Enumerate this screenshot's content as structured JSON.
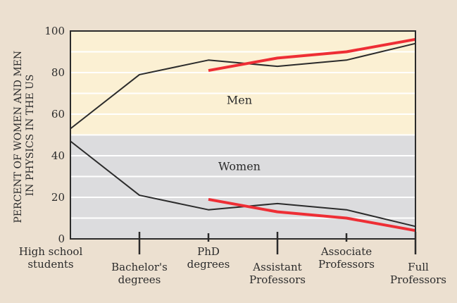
{
  "chart_data": {
    "type": "line",
    "title": "",
    "xlabel": "",
    "ylabel": "PERCENT OF WOMEN AND MEN IN PHYSICS IN THE US",
    "ylabel_lines": [
      "PERCENT OF WOMEN AND MEN",
      "IN PHYSICS IN THE US"
    ],
    "ylim": [
      0,
      100
    ],
    "yticks": [
      0,
      20,
      40,
      60,
      80,
      100
    ],
    "grid": true,
    "categories": [
      [
        "High school",
        "students"
      ],
      [
        "Bachelor's",
        "degrees"
      ],
      [
        "PhD",
        "degrees"
      ],
      [
        "Assistant",
        "Professors"
      ],
      [
        "Associate",
        "Professors"
      ],
      [
        "Full",
        "Professors"
      ]
    ],
    "region_labels": {
      "men": "Men",
      "women": "Women"
    },
    "series": [
      {
        "name": "Men (series A)",
        "color": "#2b2b2b",
        "values": [
          53,
          79,
          86,
          83,
          86,
          94
        ]
      },
      {
        "name": "Women (series A)",
        "color": "#2b2b2b",
        "values": [
          47,
          21,
          14,
          17,
          14,
          6
        ]
      },
      {
        "name": "Men (series B)",
        "color": "#ee2e35",
        "values": [
          null,
          null,
          81,
          87,
          90,
          96
        ]
      },
      {
        "name": "Women (series B)",
        "color": "#ee2e35",
        "values": [
          null,
          null,
          19,
          13,
          10,
          4
        ]
      }
    ],
    "colors": {
      "men_band": "#fbf0d3",
      "women_band": "#dcdcde",
      "grid": "#ffffff"
    }
  }
}
